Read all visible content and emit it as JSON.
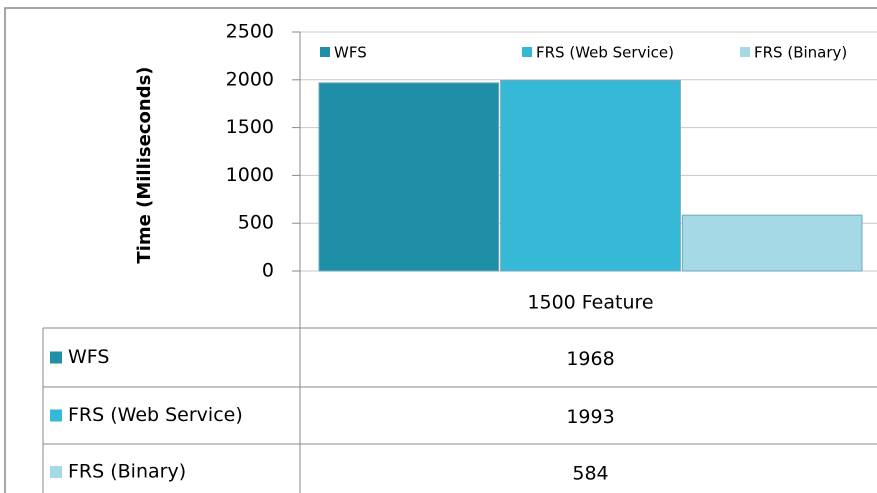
{
  "chart_data": {
    "type": "bar",
    "y_label": "Time (Milliseconds)",
    "categories": [
      "1500 Feature"
    ],
    "series": [
      {
        "name": "WFS",
        "color": "#1f8fa8",
        "values": [
          1968
        ]
      },
      {
        "name": "FRS (Web Service)",
        "color": "#35b9d6",
        "values": [
          1993
        ]
      },
      {
        "name": "FRS (Binary)",
        "color": "#a5d9e5",
        "values": [
          584
        ]
      }
    ],
    "ylim": [
      0,
      2500
    ],
    "yticks": [
      0,
      500,
      1000,
      1500,
      2000,
      2500
    ],
    "grid": true,
    "legend": "top",
    "data_table": true
  }
}
